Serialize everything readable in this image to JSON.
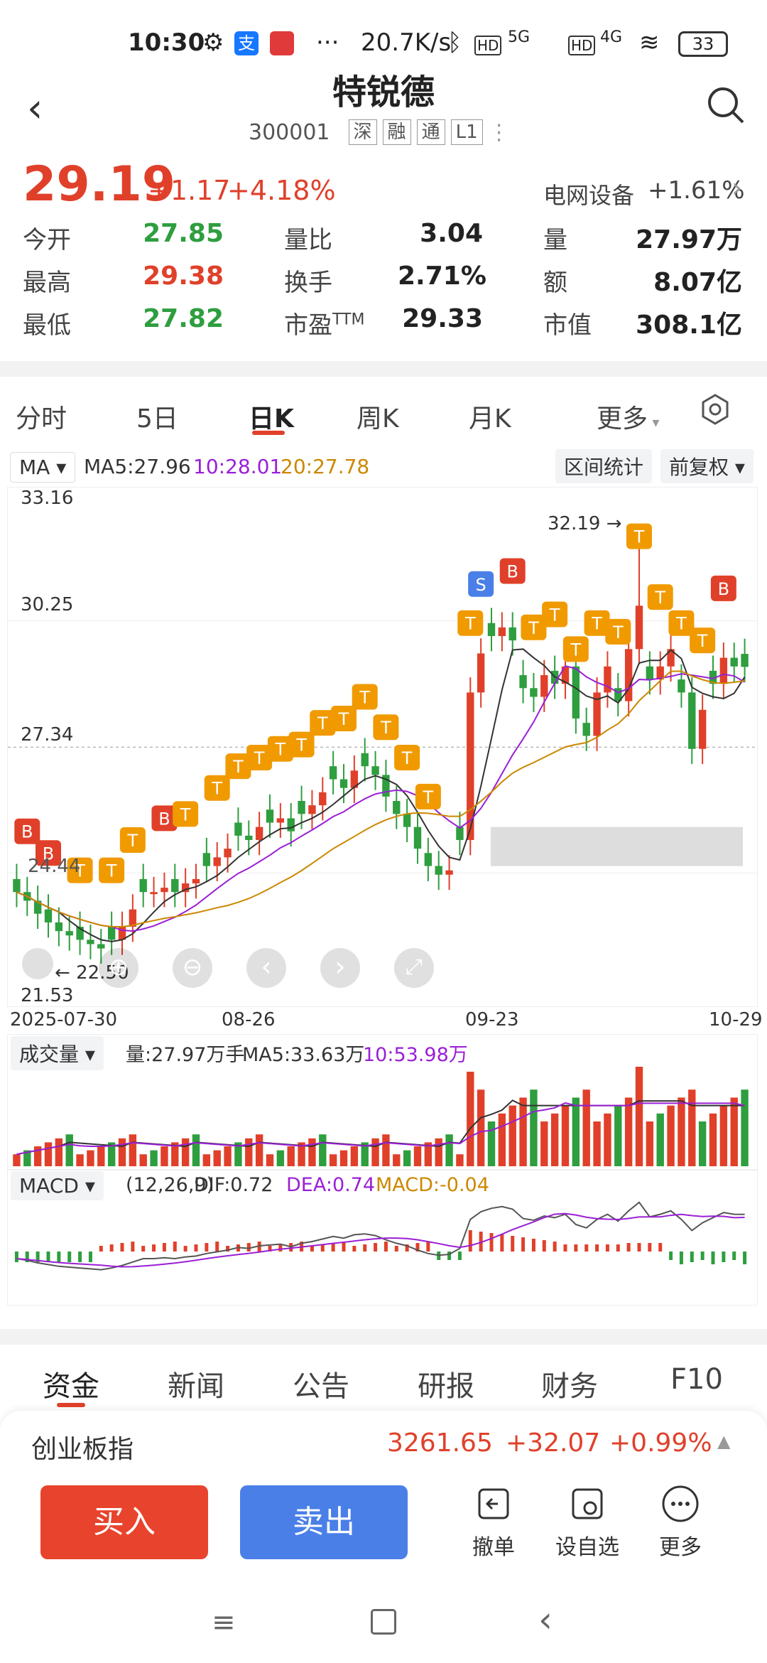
{
  "status": {
    "time": "10:30",
    "speed": "20.7K/s",
    "battery": "33",
    "net1": "5G",
    "net2": "4G",
    "hd": "HD"
  },
  "header": {
    "title": "特锐德",
    "code": "300001",
    "tags": [
      "深",
      "融",
      "通",
      "L1"
    ]
  },
  "quote": {
    "price": "29.19",
    "change": "+1.17",
    "pct": "+4.18%",
    "sector": "电网设备",
    "sector_pct": "+1.61%",
    "rows": [
      [
        {
          "l": "今开",
          "v": "27.85",
          "c": "green"
        },
        {
          "l": "量比",
          "v": "3.04",
          "c": "dark"
        },
        {
          "l": "量",
          "v": "27.97万",
          "c": "dark"
        }
      ],
      [
        {
          "l": "最高",
          "v": "29.38",
          "c": "red"
        },
        {
          "l": "换手",
          "v": "2.71%",
          "c": "dark"
        },
        {
          "l": "额",
          "v": "8.07亿",
          "c": "dark"
        }
      ],
      [
        {
          "l": "最低",
          "v": "27.82",
          "c": "green"
        },
        {
          "l": "市盈",
          "v": "29.33",
          "c": "dark"
        },
        {
          "l": "市值",
          "v": "308.1亿",
          "c": "dark"
        }
      ]
    ],
    "pe_sup": "TTM"
  },
  "chart_tabs": [
    "分时",
    "5日",
    "日K",
    "周K",
    "月K",
    "更多"
  ],
  "active_tab": "日K",
  "ma": {
    "label": "MA",
    "ma5": "MA5:27.96",
    "ma10": "10:28.01",
    "ma20": "20:27.78",
    "stats": "区间统计",
    "adjust": "前复权"
  },
  "kline_axis": {
    "y_top": "33.16",
    "y_mid1": "30.25",
    "y_mid2": "27.34",
    "y_bottom": "21.53",
    "x": [
      "2025-07-30",
      "08-26",
      "09-23",
      "10-29"
    ],
    "hi_label": "32.19",
    "lo_label": "22.50",
    "left_label": "24.44"
  },
  "volume": {
    "label": "成交量",
    "text": "量:27.97万手",
    "ma5": "MA5:33.63万",
    "ma10": "10:53.98万"
  },
  "macd": {
    "label": "MACD",
    "params": "(12,26,9)",
    "dif": "DIF:0.72",
    "dea": "DEA:0.74",
    "macd": "MACD:-0.04"
  },
  "colors": {
    "up": "#e0402a",
    "down": "#2e9e3f",
    "ma5": "#333333",
    "ma10": "#9b1fd6",
    "ma20": "#cc8800",
    "tag": "#f09a00",
    "sell": "#4a7fe8",
    "buy_btn": "#e8432c",
    "sell_btn": "#4a7fe8"
  },
  "bottom_tabs": [
    "资金",
    "新闻",
    "公告",
    "研报",
    "财务",
    "F10"
  ],
  "index": {
    "name": "创业板指",
    "value": "3261.65",
    "change": "+32.07",
    "pct": "+0.99%"
  },
  "actions": {
    "buy": "买入",
    "sell": "卖出",
    "cancel": "撤单",
    "watch": "设自选",
    "more": "更多"
  },
  "chart_data": {
    "type": "candlestick",
    "x_labels": [
      "2025-07-30",
      "08-26",
      "09-23",
      "10-29"
    ],
    "y_range": [
      21.53,
      33.16
    ],
    "high_marker": 32.19,
    "low_marker": 22.5
  }
}
